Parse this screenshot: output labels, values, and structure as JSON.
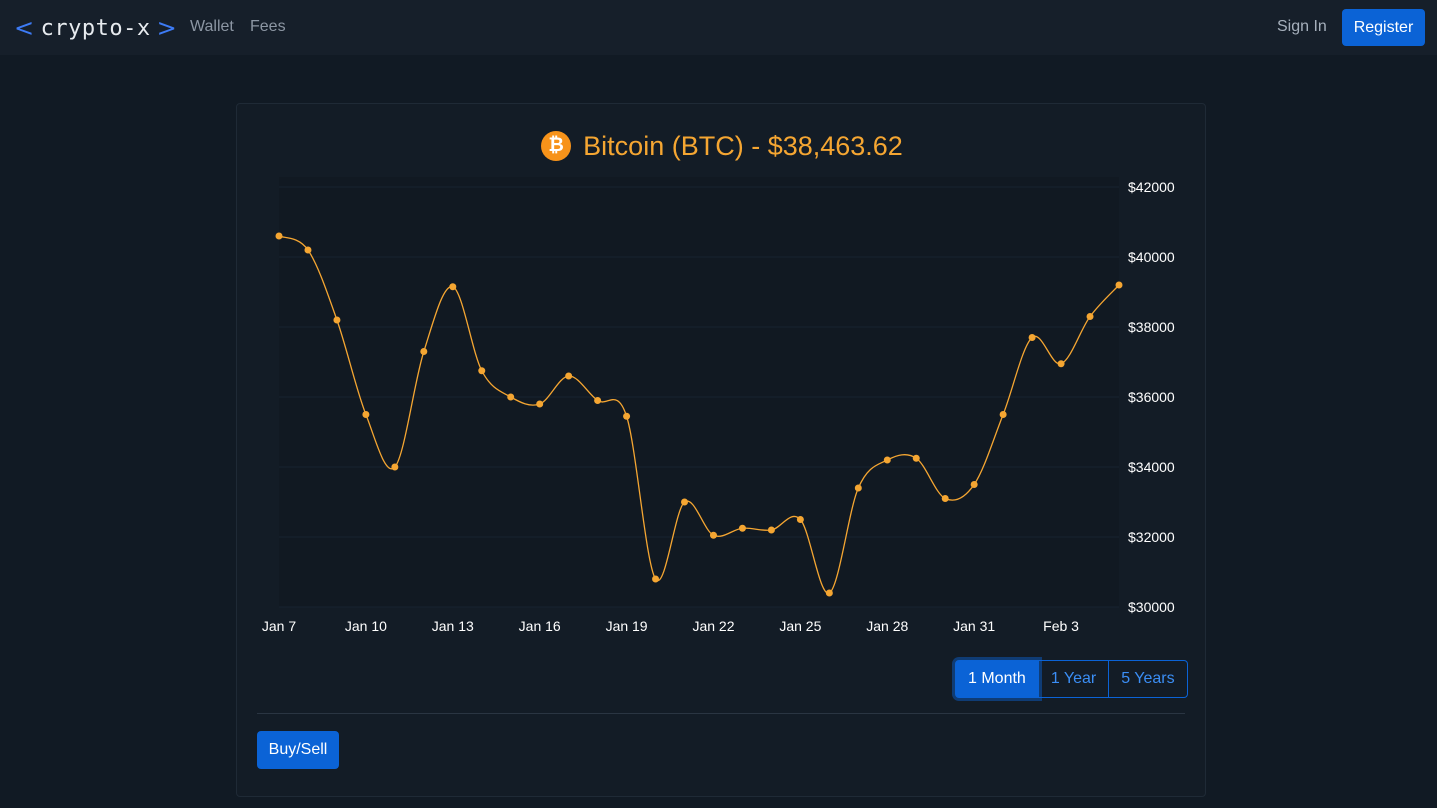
{
  "navbar": {
    "brand": "crypto-x",
    "links": [
      "Wallet",
      "Fees"
    ],
    "sign_in": "Sign In",
    "register": "Register"
  },
  "coin": {
    "icon": "bitcoin-icon",
    "icon_glyph": "₿",
    "title": "Bitcoin (BTC) - $38,463.62"
  },
  "chart_data": {
    "type": "line",
    "x": [
      "Jan 7",
      "Jan 8",
      "Jan 9",
      "Jan 10",
      "Jan 11",
      "Jan 12",
      "Jan 13",
      "Jan 14",
      "Jan 15",
      "Jan 16",
      "Jan 17",
      "Jan 18",
      "Jan 19",
      "Jan 20",
      "Jan 21",
      "Jan 22",
      "Jan 23",
      "Jan 24",
      "Jan 25",
      "Jan 26",
      "Jan 27",
      "Jan 28",
      "Jan 29",
      "Jan 30",
      "Jan 31",
      "Feb 1",
      "Feb 2",
      "Feb 3",
      "Feb 4",
      "Feb 5"
    ],
    "series": [
      {
        "values": [
          40600,
          40200,
          38200,
          35500,
          34000,
          37300,
          39150,
          36750,
          36000,
          35800,
          36600,
          35900,
          35450,
          30800,
          33000,
          32050,
          32250,
          32200,
          32500,
          30400,
          33400,
          34200,
          34250,
          33100,
          33500,
          35500,
          37700,
          36950,
          38300,
          39200
        ]
      }
    ],
    "xticks": [
      "Jan 7",
      "Jan 10",
      "Jan 13",
      "Jan 16",
      "Jan 19",
      "Jan 22",
      "Jan 25",
      "Jan 28",
      "Jan 31",
      "Feb 3"
    ],
    "yticks": [
      "$42000",
      "$40000",
      "$38000",
      "$36000",
      "$34000",
      "$32000",
      "$30000"
    ],
    "ylim": [
      30000,
      42000
    ],
    "line_color": "#f5a632",
    "grid": true,
    "y_axis_position": "right"
  },
  "range": {
    "buttons": [
      "1 Month",
      "1 Year",
      "5 Years"
    ],
    "active": "1 Month"
  },
  "actions": {
    "buy_sell": "Buy/Sell"
  }
}
